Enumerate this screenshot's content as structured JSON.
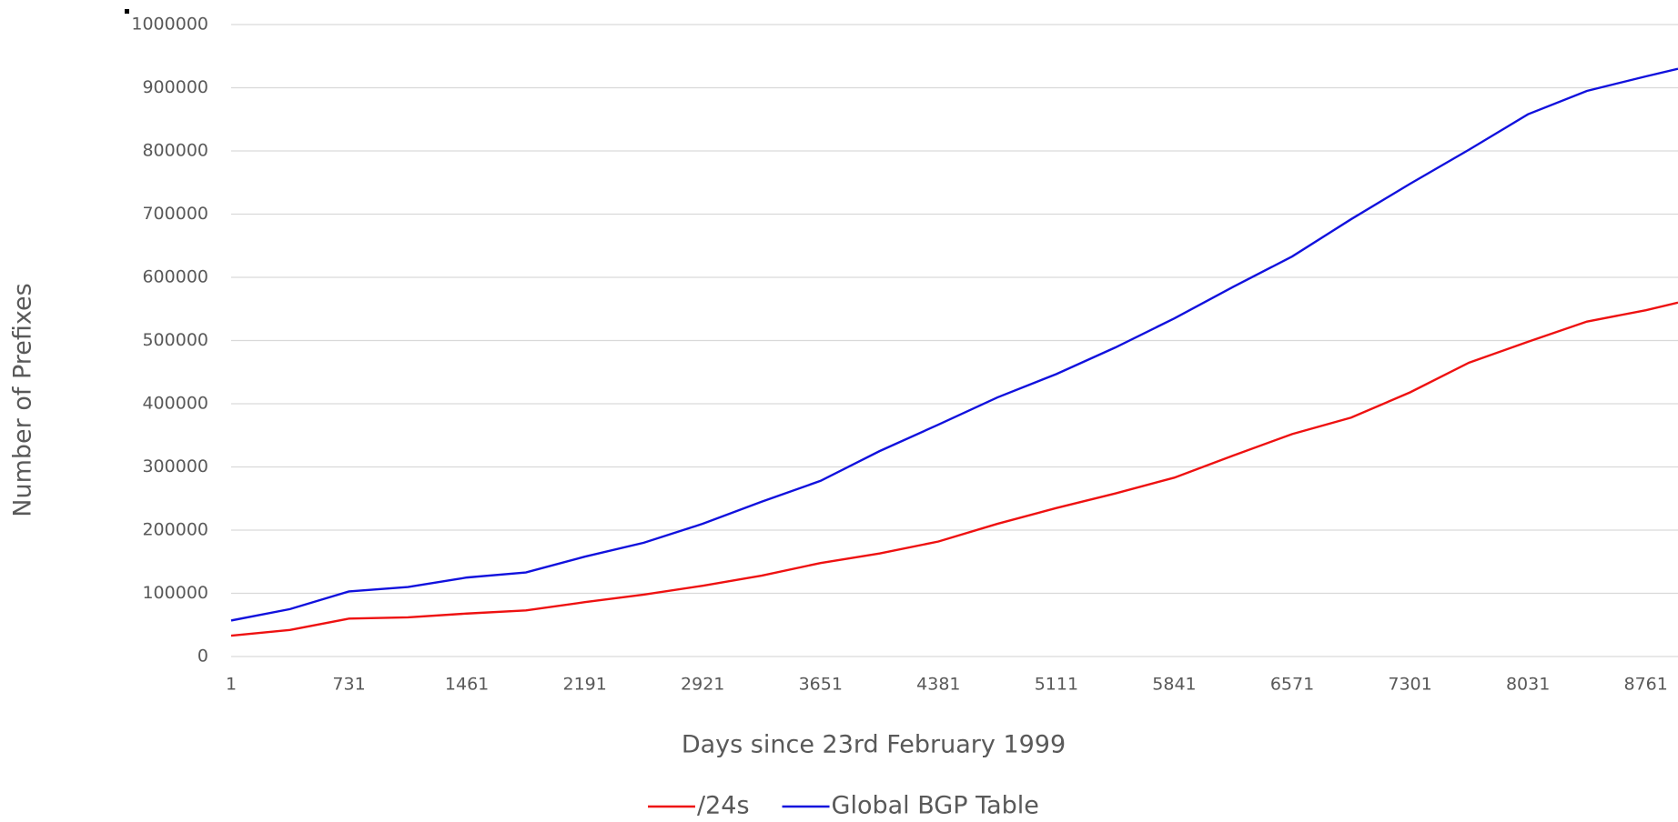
{
  "chart_data": {
    "type": "line",
    "xlabel": "Days since 23rd February 1999",
    "ylabel": "Number of Prefixes",
    "x": [
      1,
      365,
      731,
      1096,
      1461,
      1826,
      2191,
      2556,
      2921,
      3286,
      3651,
      4016,
      4381,
      4746,
      5111,
      5476,
      5841,
      6206,
      6571,
      6936,
      7301,
      7666,
      8031,
      8396,
      8761,
      8960
    ],
    "series": [
      {
        "name": "/24s",
        "color": "#ee1111",
        "values": [
          33000,
          42000,
          60000,
          62000,
          68000,
          73000,
          86000,
          98000,
          112000,
          128000,
          148000,
          163000,
          182000,
          210000,
          235000,
          258000,
          283000,
          318000,
          352000,
          378000,
          418000,
          465000,
          498000,
          530000,
          548000,
          560000
        ]
      },
      {
        "name": "Global BGP Table",
        "color": "#1111dd",
        "values": [
          57000,
          75000,
          103000,
          110000,
          125000,
          133000,
          158000,
          180000,
          210000,
          245000,
          278000,
          325000,
          367000,
          410000,
          447000,
          489000,
          535000,
          585000,
          633000,
          692000,
          748000,
          802000,
          858000,
          895000,
          918000,
          930000
        ]
      }
    ],
    "xlim": [
      1,
      8960
    ],
    "xticks": [
      1,
      731,
      1461,
      2191,
      2921,
      3651,
      4381,
      5111,
      5841,
      6571,
      7301,
      8031,
      8761
    ],
    "ylim": [
      0,
      1000000
    ],
    "yticks": [
      0,
      100000,
      200000,
      300000,
      400000,
      500000,
      600000,
      700000,
      800000,
      900000,
      1000000
    ],
    "grid": true,
    "legend": "bottom"
  }
}
